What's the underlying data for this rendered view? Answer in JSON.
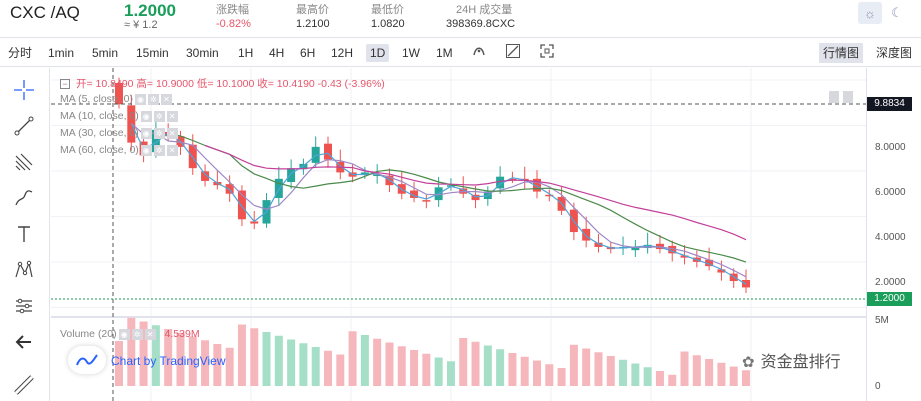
{
  "header": {
    "pair": "CXC /AQ",
    "price": "1.2000",
    "approx": "≈ ¥ 1.2",
    "stats": [
      {
        "label": "涨跌幅",
        "value": "-0.82%",
        "color": "#e5566b"
      },
      {
        "label": "最高价",
        "value": "1.2100",
        "color": "#333333"
      },
      {
        "label": "最低价",
        "value": "1.0820",
        "color": "#333333"
      },
      {
        "label": "24H 成交量",
        "value": "398369.8CXC",
        "color": "#333333"
      }
    ],
    "theme_icon": "sun-icon",
    "moon_icon": "moon-icon"
  },
  "toolbar": {
    "intervals": [
      "分时",
      "1min",
      "5min",
      "15min",
      "30min",
      "1H",
      "4H",
      "6H",
      "12H",
      "1D",
      "1W",
      "1M"
    ],
    "active_interval": "1D",
    "icons": [
      "indicator-icon",
      "compare-icon",
      "fullscreen-icon"
    ],
    "views": [
      "行情图",
      "深度图"
    ],
    "active_view": "行情图"
  },
  "left_tools": [
    "crosshair-icon",
    "trendline-icon",
    "fib-icon",
    "brush-icon",
    "text-icon",
    "pattern-icon",
    "measure-icon",
    "back-arrow-icon",
    "ruler-icon"
  ],
  "legend": {
    "ohlc": "开= 10.8490    高= 10.9000    低= 10.1000    收= 10.4190    -0.43  (-3.96%)",
    "ma": [
      "MA (5, close, 0)",
      "MA (10, close, 0)",
      "MA (30, close, 0)",
      "MA (60, close, 0)"
    ],
    "volume_label": "Volume (20)",
    "volume_value": "4.539M",
    "tradingview": "Chart by TradingView"
  },
  "axis": {
    "labels": [
      "8.0000",
      "6.0000",
      "4.0000",
      "2.0000",
      "5M",
      "0"
    ],
    "crosshair_price": "9.8834",
    "last_price": "1.2000",
    "colors": {
      "up": "#26a69a",
      "down": "#ef5350",
      "last": "#1a9e5a",
      "crosshair": "#333333"
    }
  },
  "chart_data": {
    "type": "candlestick",
    "ylim": [
      0,
      11
    ],
    "approx_close_series": [
      9.8,
      8.0,
      7.4,
      8.6,
      8.3,
      7.8,
      6.8,
      6.2,
      6.0,
      5.6,
      4.4,
      4.2,
      5.3,
      6.3,
      6.8,
      7.0,
      7.8,
      7.2,
      6.6,
      6.4,
      6.6,
      6.5,
      6.0,
      5.6,
      5.4,
      5.3,
      5.9,
      6.0,
      5.6,
      5.3,
      5.7,
      6.4,
      6.3,
      6.2,
      5.7,
      5.5,
      4.8,
      3.8,
      3.4,
      3.1,
      3.0,
      3.1,
      3.1,
      3.2,
      3.0,
      2.8,
      2.6,
      2.4,
      2.2,
      1.9,
      1.5,
      1.2
    ],
    "ma_series": [
      {
        "name": "MA (5, close, 0)"
      },
      {
        "name": "MA (10, close, 0)"
      },
      {
        "name": "MA (30, close, 0)"
      },
      {
        "name": "MA (60, close, 0)"
      }
    ]
  },
  "watermark": "资金盘排行"
}
